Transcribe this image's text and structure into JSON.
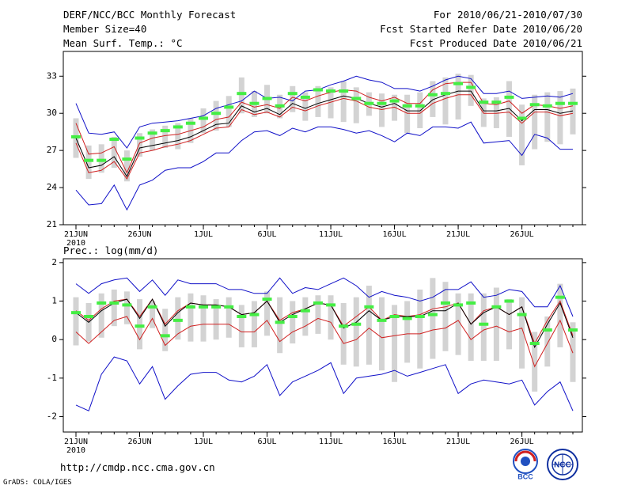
{
  "header": {
    "title": "DERF/NCC/BCC Monthly Forecast",
    "member_size": "Member Size=40",
    "variable1": "Mean Surf. Temp.: °C",
    "period": "For 2010/06/21-2010/07/30",
    "started": "Fcst Started Refer Date 2010/06/20",
    "produced": "Fcst Produced Date 2010/06/21"
  },
  "footer": {
    "url": "http://cmdp.ncc.cma.gov.cn",
    "grads": "GrADS: COLA/IGES",
    "logo_bcc": "BCC",
    "logo_ncc": "NCC"
  },
  "colors": {
    "box": "#d3d3d3",
    "median": "#44ee44",
    "mean": "#000000",
    "upper_band": "#d02020",
    "envelope": "#1010c8"
  },
  "chart_data": [
    {
      "type": "box-line",
      "title": "Mean Surf. Temp.: °C",
      "x": [
        1,
        2,
        3,
        4,
        5,
        6,
        7,
        8,
        9,
        10,
        11,
        12,
        13,
        14,
        15,
        16,
        17,
        18,
        19,
        20,
        21,
        22,
        23,
        24,
        25,
        26,
        27,
        28,
        29,
        30,
        31,
        32,
        33,
        34,
        35,
        36,
        37,
        38,
        39,
        40
      ],
      "x_tick_positions": [
        1,
        6,
        11,
        16,
        21,
        26,
        31,
        36
      ],
      "x_tick_labels": [
        "21JUN",
        "26JUN",
        "1JUL",
        "6JUL",
        "11JUL",
        "16JUL",
        "21JUL",
        "26JUL"
      ],
      "x_year_label": "2010",
      "ylim": [
        21,
        35
      ],
      "y_ticks": [
        21,
        24,
        27,
        30,
        33
      ],
      "ensemble_max": [
        30.8,
        28.4,
        28.3,
        28.5,
        27.2,
        28.9,
        29.2,
        29.3,
        29.4,
        29.6,
        29.8,
        30.4,
        30.7,
        31.0,
        31.8,
        31.2,
        31.3,
        31.0,
        31.8,
        31.9,
        32.3,
        32.6,
        33.0,
        32.7,
        32.5,
        32.0,
        32.0,
        31.8,
        32.2,
        32.7,
        33.0,
        32.8,
        31.6,
        31.6,
        31.8,
        31.2,
        31.3,
        31.4,
        31.3,
        31.6
      ],
      "upper": [
        29.2,
        26.7,
        26.8,
        27.3,
        25.2,
        27.6,
        28.0,
        28.2,
        28.3,
        28.6,
        28.9,
        29.5,
        29.7,
        30.9,
        30.5,
        30.7,
        30.4,
        31.3,
        31.0,
        31.4,
        31.7,
        31.9,
        31.8,
        31.3,
        31.0,
        31.3,
        30.8,
        30.8,
        31.9,
        32.4,
        32.5,
        32.5,
        30.8,
        30.7,
        31.0,
        30.0,
        30.7,
        30.6,
        30.4,
        30.6
      ],
      "mean": [
        28.0,
        25.6,
        25.8,
        26.5,
        24.9,
        27.2,
        27.4,
        27.6,
        27.8,
        28.1,
        28.6,
        29.1,
        29.2,
        30.6,
        30.1,
        30.4,
        29.9,
        30.8,
        30.4,
        30.8,
        31.1,
        31.4,
        31.2,
        30.8,
        30.5,
        30.8,
        30.2,
        30.2,
        31.1,
        31.5,
        31.8,
        31.8,
        30.2,
        30.2,
        30.4,
        29.4,
        30.3,
        30.3,
        30.0,
        30.2
      ],
      "lower": [
        27.6,
        25.2,
        25.4,
        26.1,
        24.7,
        26.8,
        27.0,
        27.3,
        27.5,
        27.8,
        28.3,
        28.8,
        28.9,
        30.3,
        29.9,
        30.1,
        29.7,
        30.5,
        30.2,
        30.6,
        30.9,
        31.2,
        31.0,
        30.5,
        30.3,
        30.5,
        30.0,
        30.0,
        30.8,
        31.2,
        31.5,
        31.5,
        30.0,
        30.0,
        30.1,
        29.2,
        30.1,
        30.1,
        29.8,
        30.0
      ],
      "ensemble_min": [
        23.8,
        22.6,
        22.7,
        24.2,
        22.2,
        24.2,
        24.6,
        25.4,
        25.6,
        25.6,
        26.1,
        26.8,
        26.8,
        27.8,
        28.5,
        28.6,
        28.2,
        28.8,
        28.5,
        28.9,
        28.9,
        28.7,
        28.4,
        28.6,
        28.2,
        27.7,
        28.4,
        28.2,
        28.9,
        28.9,
        28.8,
        29.3,
        27.6,
        27.7,
        27.8,
        26.6,
        28.3,
        28.0,
        27.1,
        27.1
      ],
      "box_top": [
        29.6,
        27.4,
        27.5,
        28.1,
        27.0,
        28.4,
        28.7,
        29.0,
        29.2,
        29.6,
        30.4,
        31.0,
        31.4,
        32.9,
        31.8,
        32.3,
        31.5,
        32.2,
        31.7,
        32.2,
        32.1,
        32.6,
        32.1,
        31.7,
        31.6,
        31.5,
        31.5,
        31.7,
        32.6,
        32.9,
        33.2,
        33.1,
        31.2,
        31.3,
        32.6,
        30.7,
        31.5,
        31.7,
        31.8,
        32.0
      ],
      "box_bottom": [
        26.4,
        24.7,
        25.2,
        25.6,
        24.5,
        26.5,
        27.0,
        27.2,
        27.1,
        27.6,
        28.4,
        28.6,
        28.9,
        30.0,
        29.7,
        30.0,
        29.6,
        30.1,
        29.4,
        29.7,
        29.6,
        29.3,
        29.2,
        29.8,
        28.9,
        29.4,
        28.4,
        28.8,
        29.7,
        29.1,
        29.5,
        30.6,
        28.9,
        28.8,
        28.1,
        25.8,
        27.1,
        27.7,
        27.5,
        28.3
      ],
      "median": [
        28.1,
        26.2,
        26.2,
        27.9,
        26.3,
        28.0,
        28.4,
        28.6,
        28.9,
        29.2,
        29.6,
        30.0,
        30.5,
        31.6,
        30.8,
        31.2,
        30.6,
        31.6,
        31.3,
        31.9,
        31.8,
        31.8,
        31.2,
        30.8,
        30.8,
        31.0,
        30.6,
        30.6,
        31.5,
        31.6,
        32.4,
        32.1,
        30.9,
        30.9,
        31.3,
        29.6,
        30.7,
        30.6,
        30.8,
        30.8
      ]
    },
    {
      "type": "box-line",
      "title": "Prec.: log(mm/d)",
      "x": [
        1,
        2,
        3,
        4,
        5,
        6,
        7,
        8,
        9,
        10,
        11,
        12,
        13,
        14,
        15,
        16,
        17,
        18,
        19,
        20,
        21,
        22,
        23,
        24,
        25,
        26,
        27,
        28,
        29,
        30,
        31,
        32,
        33,
        34,
        35,
        36,
        37,
        38,
        39,
        40
      ],
      "x_tick_positions": [
        1,
        6,
        11,
        16,
        21,
        26,
        31,
        36
      ],
      "x_tick_labels": [
        "21JUN",
        "26JUN",
        "1JUL",
        "6JUL",
        "11JUL",
        "16JUL",
        "21JUL",
        "26JUL"
      ],
      "x_year_label": "2010",
      "ylim": [
        -2.4,
        2.1
      ],
      "y_ticks": [
        -2,
        -1,
        0,
        1,
        2
      ],
      "ensemble_max": [
        1.45,
        1.2,
        1.45,
        1.55,
        1.6,
        1.25,
        1.55,
        1.15,
        1.55,
        1.45,
        1.45,
        1.45,
        1.3,
        1.3,
        1.2,
        1.2,
        1.6,
        1.2,
        1.35,
        1.3,
        1.45,
        1.6,
        1.4,
        1.1,
        1.25,
        1.15,
        1.1,
        1.0,
        1.1,
        1.3,
        1.3,
        1.5,
        1.1,
        1.15,
        1.3,
        1.25,
        0.85,
        0.85,
        1.4,
        0.6
      ],
      "upper": [
        0.75,
        0.5,
        0.8,
        1.0,
        1.05,
        0.6,
        1.05,
        0.4,
        0.75,
        0.95,
        0.9,
        0.9,
        0.85,
        0.65,
        0.7,
        1.0,
        0.5,
        0.7,
        0.8,
        0.95,
        0.9,
        0.35,
        0.6,
        0.85,
        0.5,
        0.65,
        0.6,
        0.65,
        0.8,
        0.85,
        0.95,
        0.4,
        0.75,
        0.85,
        0.65,
        0.85,
        -0.1,
        0.5,
        1.0,
        0.1
      ],
      "mean": [
        0.7,
        0.45,
        0.75,
        0.95,
        1.05,
        0.55,
        1.05,
        0.35,
        0.7,
        0.95,
        0.9,
        0.9,
        0.85,
        0.65,
        0.7,
        1.0,
        0.45,
        0.65,
        0.8,
        0.95,
        0.9,
        0.3,
        0.45,
        0.75,
        0.5,
        0.6,
        0.6,
        0.6,
        0.75,
        0.75,
        0.95,
        0.4,
        0.7,
        0.85,
        0.65,
        0.85,
        -0.2,
        0.4,
        0.95,
        0.05
      ],
      "lower": [
        0.2,
        -0.1,
        0.2,
        0.5,
        0.6,
        0.0,
        0.55,
        -0.15,
        0.15,
        0.35,
        0.4,
        0.4,
        0.4,
        0.2,
        0.2,
        0.5,
        -0.05,
        0.2,
        0.35,
        0.55,
        0.45,
        -0.1,
        0.0,
        0.3,
        0.05,
        0.1,
        0.15,
        0.15,
        0.25,
        0.3,
        0.5,
        0.0,
        0.25,
        0.35,
        0.2,
        0.3,
        -0.7,
        -0.1,
        0.5,
        -0.35
      ],
      "ensemble_min": [
        -1.7,
        -1.85,
        -0.9,
        -0.45,
        -0.55,
        -1.15,
        -0.7,
        -1.55,
        -1.2,
        -0.9,
        -0.85,
        -0.85,
        -1.05,
        -1.1,
        -0.95,
        -0.65,
        -1.45,
        -1.1,
        -0.95,
        -0.8,
        -0.6,
        -1.4,
        -1.0,
        -0.95,
        -0.9,
        -0.8,
        -0.95,
        -0.85,
        -0.75,
        -0.65,
        -1.4,
        -1.15,
        -1.05,
        -1.1,
        -1.15,
        -1.05,
        -1.7,
        -1.35,
        -1.1,
        -1.85
      ],
      "box_top": [
        1.1,
        0.95,
        1.2,
        1.3,
        1.25,
        1.05,
        1.0,
        0.8,
        1.1,
        1.2,
        1.15,
        1.05,
        1.1,
        0.9,
        1.0,
        1.25,
        1.1,
        1.0,
        1.1,
        1.15,
        1.15,
        0.95,
        1.1,
        1.4,
        1.1,
        0.9,
        1.0,
        1.3,
        1.6,
        1.5,
        1.2,
        1.2,
        1.2,
        1.35,
        1.05,
        1.1,
        0.2,
        0.6,
        1.45,
        0.45
      ],
      "box_bottom": [
        -0.15,
        -0.05,
        0.05,
        0.35,
        0.4,
        -0.25,
        0.3,
        -0.3,
        0.0,
        -0.05,
        -0.05,
        0.0,
        0.05,
        -0.2,
        -0.2,
        0.1,
        -0.35,
        -0.1,
        0.1,
        0.15,
        0.0,
        -0.65,
        -0.7,
        -0.65,
        -0.8,
        -1.1,
        -0.6,
        -0.75,
        -0.5,
        -0.3,
        -0.4,
        -0.55,
        -0.55,
        -0.55,
        -0.25,
        -0.75,
        -1.35,
        -0.7,
        -0.2,
        -1.1
      ],
      "median": [
        0.7,
        0.6,
        0.95,
        0.95,
        0.9,
        0.35,
        0.85,
        0.1,
        0.5,
        0.85,
        0.85,
        0.85,
        0.85,
        0.6,
        0.65,
        1.05,
        0.45,
        0.6,
        0.75,
        0.95,
        0.9,
        0.35,
        0.4,
        0.85,
        0.5,
        0.6,
        0.55,
        0.6,
        0.65,
        0.95,
        0.9,
        0.95,
        0.4,
        0.85,
        1.0,
        0.65,
        -0.1,
        0.25,
        1.1,
        0.25
      ]
    }
  ]
}
